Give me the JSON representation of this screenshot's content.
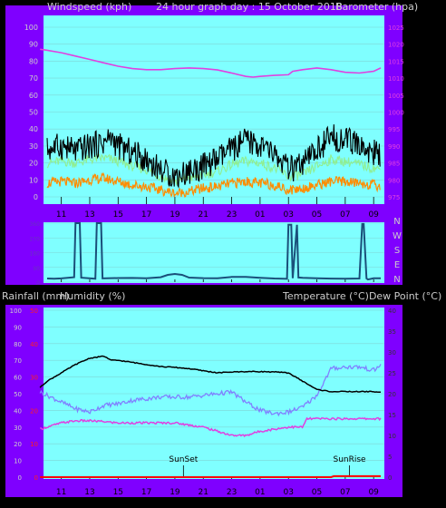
{
  "header": {
    "left": "Windspeed (kph)",
    "center": "24 hour graph day : 15 October 2018",
    "right": "Barometer (hpa)"
  },
  "mid_header": {
    "left_a": "Rainfall (mm)",
    "left_b": "Humidity (%)",
    "right": "Temperature (°C)Dew Point (°C)"
  },
  "colors": {
    "chart_bg": "#7fffff",
    "side_bg": "#7f00ff",
    "barometer": "#e040e0",
    "wind_gust": "#000000",
    "wind_avg": "#90ee90",
    "wind_low": "#ff8c00",
    "wind_dir": "#1a4f7a",
    "temperature": "#000000",
    "humidity": "#8080ff",
    "dew_point": "#e040e0",
    "rainfall": "#ff0000"
  },
  "chart_data": [
    {
      "id": "wind-baro",
      "type": "line",
      "x_ticks": [
        "11",
        "13",
        "15",
        "17",
        "19",
        "21",
        "23",
        "01",
        "03",
        "05",
        "07",
        "09"
      ],
      "x_range_hours": [
        10,
        33.5
      ],
      "left_axis": {
        "ticks": [
          "0",
          "5",
          "10",
          "15",
          "20",
          "25",
          "30",
          "35",
          "40",
          "45",
          "50",
          "55",
          "60",
          "65",
          "70",
          "75",
          "80",
          "85",
          "90",
          "95",
          "100"
        ],
        "labeled": [
          "0",
          "10",
          "20",
          "30",
          "40",
          "50",
          "60",
          "70",
          "80",
          "90",
          "100"
        ],
        "ylim": [
          0,
          100
        ]
      },
      "right_axis": {
        "labeled": [
          "975",
          "980",
          "985",
          "990",
          "995",
          "1000",
          "1005",
          "1010",
          "1015",
          "1020",
          "1025"
        ],
        "ylim": [
          975,
          1025
        ]
      },
      "series": [
        {
          "key": "barometer",
          "axis": "right",
          "x": [
            9.5,
            10,
            11,
            12,
            13,
            14,
            15,
            16,
            17,
            18,
            19,
            20,
            21,
            22,
            23,
            23.5,
            24,
            24.5,
            25,
            26,
            27,
            27.3,
            28,
            29,
            30,
            31,
            32,
            33,
            33.5
          ],
          "y": [
            1018.5,
            1018.2,
            1017.5,
            1016.5,
            1015.5,
            1014.5,
            1013.5,
            1012.8,
            1012.5,
            1012.5,
            1012.8,
            1013.0,
            1012.8,
            1012.4,
            1011.5,
            1011.0,
            1010.5,
            1010.3,
            1010.5,
            1010.8,
            1011.0,
            1012.0,
            1012.5,
            1013.0,
            1012.5,
            1011.7,
            1011.5,
            1012.0,
            1013.0
          ]
        },
        {
          "key": "wind_gust",
          "axis": "left",
          "x": [
            10,
            11,
            12,
            13,
            14,
            14.5,
            15,
            16,
            17,
            18,
            19,
            20,
            21,
            22,
            23,
            24,
            25,
            26,
            27,
            28,
            29,
            30,
            31,
            32,
            33,
            33.5
          ],
          "y": [
            28,
            30,
            27,
            30,
            32,
            35,
            30,
            26,
            22,
            16,
            12,
            15,
            18,
            22,
            28,
            33,
            30,
            25,
            16,
            18,
            28,
            35,
            34,
            30,
            26,
            24
          ]
        },
        {
          "key": "wind_avg",
          "axis": "left",
          "x": [
            10,
            11,
            12,
            13,
            14,
            15,
            16,
            17,
            18,
            19,
            20,
            21,
            22,
            23,
            24,
            25,
            26,
            27,
            28,
            29,
            30,
            31,
            32,
            33,
            33.5
          ],
          "y": [
            20,
            21,
            20,
            22,
            23,
            21,
            18,
            16,
            12,
            9,
            11,
            13,
            15,
            19,
            21,
            20,
            17,
            12,
            13,
            18,
            22,
            21,
            19,
            17,
            16
          ]
        },
        {
          "key": "wind_low",
          "axis": "left",
          "x": [
            10,
            11,
            12,
            13,
            14,
            15,
            16,
            17,
            18,
            19,
            20,
            21,
            22,
            23,
            24,
            25,
            26,
            27,
            28,
            29,
            30,
            31,
            32,
            33,
            33.5
          ],
          "y": [
            8,
            9,
            8,
            10,
            11,
            9,
            7,
            6,
            4,
            2,
            3,
            5,
            6,
            8,
            9,
            8,
            7,
            4,
            5,
            7,
            9,
            9,
            8,
            7,
            6
          ]
        }
      ]
    },
    {
      "id": "wind-direction",
      "type": "line",
      "x_range_hours": [
        10,
        33.5
      ],
      "right_labels": [
        "N",
        "W",
        "S",
        "E",
        "N"
      ],
      "ylim": [
        0,
        360
      ],
      "series": [
        {
          "key": "wind_dir",
          "x": [
            10,
            10.5,
            11,
            11.9,
            12.0,
            12.3,
            12.4,
            13.4,
            13.5,
            13.8,
            13.9,
            15,
            16,
            17,
            18,
            18.5,
            19,
            19.5,
            20,
            21,
            22,
            23,
            24,
            25,
            26,
            26.9,
            27.0,
            27.2,
            27.3,
            27.6,
            27.7,
            28,
            29,
            30,
            31,
            32,
            32.2,
            32.3,
            32.5,
            32.6,
            33,
            33.5
          ],
          "y": [
            25,
            22,
            25,
            25,
            360,
            360,
            25,
            25,
            360,
            360,
            25,
            22,
            24,
            28,
            35,
            48,
            50,
            45,
            32,
            30,
            28,
            30,
            28,
            30,
            26,
            25,
            350,
            350,
            20,
            350,
            25,
            22,
            24,
            26,
            22,
            20,
            355,
            355,
            20,
            18,
            25,
            22
          ]
        }
      ]
    },
    {
      "id": "temp-humidity",
      "type": "line",
      "x_ticks": [
        "11",
        "13",
        "15",
        "17",
        "19",
        "21",
        "23",
        "01",
        "03",
        "05",
        "07",
        "09"
      ],
      "x_range_hours": [
        10,
        33.5
      ],
      "left_axis": {
        "ticks": [
          "0",
          "10",
          "20",
          "30",
          "40",
          "50",
          "60",
          "70",
          "80",
          "90",
          "100"
        ],
        "ylim": [
          0,
          100
        ]
      },
      "rain_axis": {
        "ticks": [
          "0",
          "5",
          "10",
          "15",
          "20",
          "25",
          "30",
          "35",
          "40",
          "45",
          "50"
        ],
        "ylim": [
          0,
          50
        ]
      },
      "right_axis": {
        "ticks": [
          "0",
          "5",
          "10",
          "15",
          "20",
          "25",
          "30",
          "35",
          "40"
        ],
        "ylim": [
          0,
          40
        ]
      },
      "annotations": [
        {
          "text": "SunSet",
          "hour": 19.6
        },
        {
          "text": "SunRise",
          "hour": 31.3
        }
      ],
      "series": [
        {
          "key": "temperature",
          "axis": "right",
          "x": [
            9.5,
            10,
            11,
            12,
            13,
            14,
            14.5,
            15,
            16,
            17,
            18,
            19,
            20,
            21,
            22,
            23,
            24,
            25,
            26,
            27,
            28,
            29,
            30,
            31,
            32,
            33,
            33.5
          ],
          "y": [
            21.5,
            23,
            25,
            27,
            28.5,
            29,
            28,
            28,
            27.5,
            27,
            26.5,
            26.3,
            26,
            25.5,
            25,
            25.2,
            25.3,
            25.3,
            25.2,
            25,
            23,
            21,
            20.5,
            20.5,
            20.5,
            20.5,
            20.3
          ]
        },
        {
          "key": "humidity",
          "axis": "left",
          "x": [
            9.5,
            10,
            11,
            12,
            13,
            14,
            15,
            16,
            17,
            18,
            19,
            20,
            21,
            22,
            23,
            24,
            25,
            26,
            27,
            28,
            29,
            30,
            31,
            32,
            33,
            33.5
          ],
          "y": [
            51,
            49,
            45,
            41,
            39,
            43,
            44,
            46,
            47,
            48,
            48,
            48,
            49,
            50,
            51,
            45,
            40,
            38,
            39,
            42,
            49,
            65,
            66,
            66,
            64,
            67
          ]
        },
        {
          "key": "dew_point",
          "axis": "right",
          "x": [
            9.5,
            10,
            11,
            12,
            13,
            14,
            15,
            16,
            17,
            18,
            19,
            20,
            21,
            22,
            23,
            24,
            25,
            26,
            27,
            28,
            28.3,
            29,
            30,
            31,
            32,
            33,
            33.5
          ],
          "y": [
            11.5,
            12,
            13,
            13.5,
            13.5,
            13.3,
            13,
            13,
            13,
            13,
            13,
            12.5,
            12,
            11,
            10,
            10,
            11,
            11.5,
            12,
            12,
            14,
            14,
            14,
            14,
            14,
            14,
            14
          ]
        },
        {
          "key": "rainfall",
          "axis": "rain",
          "x": [
            9.5,
            30,
            30.2,
            33.5
          ],
          "y": [
            0,
            0,
            0.3,
            0.3
          ]
        }
      ]
    }
  ]
}
